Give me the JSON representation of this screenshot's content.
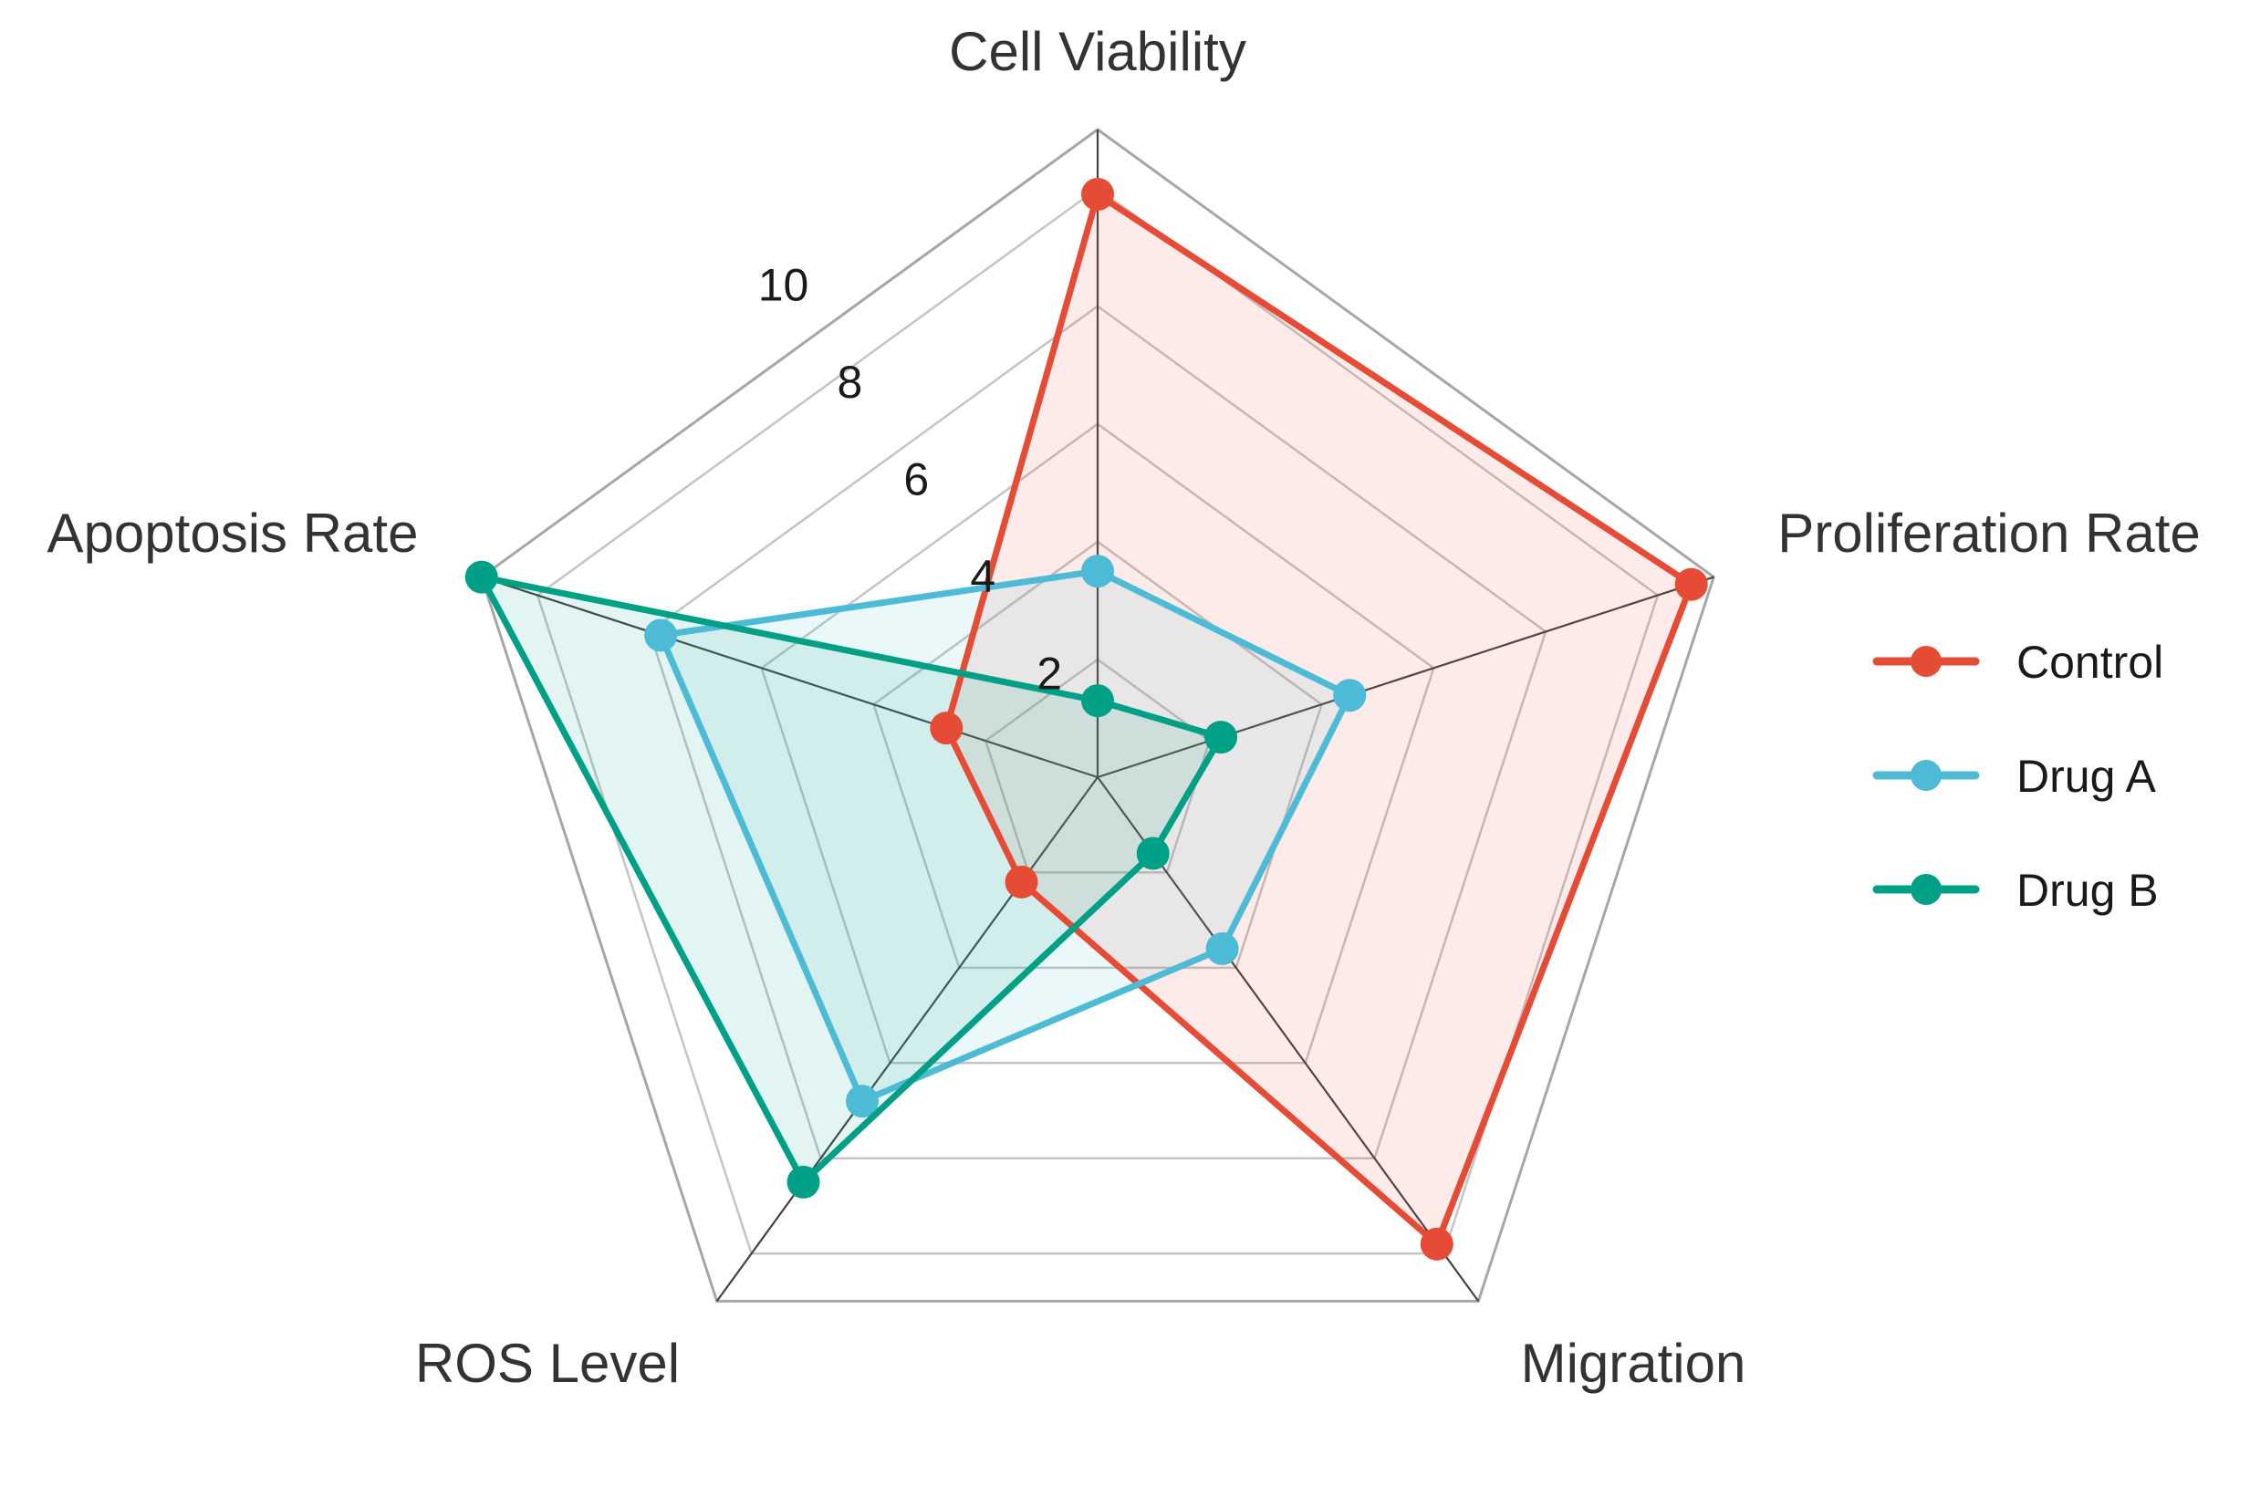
{
  "chart_data": {
    "type": "radar",
    "axes": [
      "Cell Viability",
      "Proliferation Rate",
      "Migration",
      "ROS Level",
      "Apoptosis Rate"
    ],
    "rlim": [
      0,
      11
    ],
    "r_ticks": [
      2,
      4,
      6,
      8,
      10
    ],
    "r_tick_labels": [
      "2",
      "4",
      "6",
      "8",
      "10"
    ],
    "grid": true,
    "legend_position": "right",
    "series": [
      {
        "name": "Control",
        "color": "#E64B35",
        "values": [
          9.9,
          10.6,
          9.8,
          2.2,
          2.7
        ]
      },
      {
        "name": "Drug A",
        "color": "#4DBBD5",
        "values": [
          3.5,
          4.5,
          3.6,
          6.8,
          7.8
        ]
      },
      {
        "name": "Drug B",
        "color": "#00A087",
        "values": [
          1.3,
          2.2,
          1.6,
          8.5,
          11.0
        ]
      }
    ]
  },
  "legend": {
    "items": [
      {
        "label": "Control"
      },
      {
        "label": "Drug A"
      },
      {
        "label": "Drug B"
      }
    ]
  }
}
